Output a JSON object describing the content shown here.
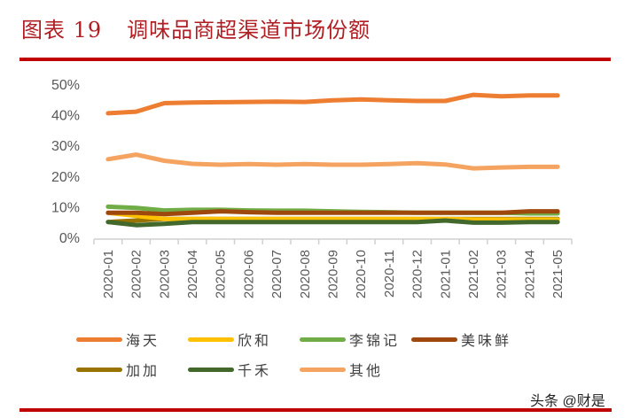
{
  "header": {
    "figure_number": "图表 19",
    "title": "调味品商超渠道市场份额"
  },
  "watermark": "头条 @财是",
  "colors": {
    "haitian": "#ed7d31",
    "xinhe": "#ffc000",
    "likumkee": "#70ad47",
    "meiweixian": "#9e480e",
    "jiajia": "#997300",
    "qianhe": "#43682b",
    "other": "#f4a460",
    "accent_red": "#c00000"
  },
  "legend": [
    {
      "name": "海天",
      "key": "haitian"
    },
    {
      "name": "欣和",
      "key": "xinhe"
    },
    {
      "name": "李锦记",
      "key": "likumkee"
    },
    {
      "name": "美味鲜",
      "key": "meiweixian"
    },
    {
      "name": "加加",
      "key": "jiajia"
    },
    {
      "name": "千禾",
      "key": "qianhe"
    },
    {
      "name": "其他",
      "key": "other"
    }
  ],
  "chart_data": {
    "type": "line",
    "title": "调味品商超渠道市场份额",
    "xlabel": "",
    "ylabel": "",
    "ylim": [
      0,
      50
    ],
    "yticks": [
      "0%",
      "10%",
      "20%",
      "30%",
      "40%",
      "50%"
    ],
    "grid": false,
    "legend_position": "bottom",
    "categories": [
      "2020-01",
      "2020-02",
      "2020-03",
      "2020-04",
      "2020-05",
      "2020-06",
      "2020-07",
      "2020-08",
      "2020-09",
      "2020-10",
      "2020-11",
      "2020-12",
      "2021-01",
      "2021-02",
      "2021-03",
      "2021-04",
      "2021-05"
    ],
    "series": [
      {
        "name": "海天",
        "color": "#ed7d31",
        "values": [
          40.5,
          41.0,
          43.8,
          44.0,
          44.1,
          44.2,
          44.3,
          44.2,
          44.7,
          45.0,
          44.7,
          44.5,
          44.5,
          46.5,
          46.0,
          46.3,
          46.3
        ]
      },
      {
        "name": "欣和",
        "color": "#ffc000",
        "values": [
          8.0,
          7.0,
          6.0,
          6.0,
          6.0,
          6.0,
          6.0,
          6.0,
          6.0,
          6.0,
          6.0,
          6.0,
          6.0,
          5.8,
          5.8,
          5.8,
          5.8
        ]
      },
      {
        "name": "李锦记",
        "color": "#70ad47",
        "values": [
          10.0,
          9.6,
          8.8,
          9.0,
          9.0,
          8.8,
          8.7,
          8.7,
          8.5,
          8.3,
          8.2,
          8.0,
          8.0,
          8.0,
          8.0,
          7.8,
          7.8
        ]
      },
      {
        "name": "美味鲜",
        "color": "#9e480e",
        "values": [
          8.0,
          8.0,
          7.6,
          8.0,
          8.5,
          8.2,
          8.0,
          8.0,
          8.0,
          8.0,
          8.0,
          8.0,
          8.0,
          8.0,
          8.0,
          8.5,
          8.5
        ]
      },
      {
        "name": "加加",
        "color": "#997300",
        "values": [
          5.0,
          5.5,
          6.0,
          6.0,
          6.0,
          6.0,
          6.0,
          6.0,
          6.0,
          6.0,
          6.0,
          6.0,
          6.0,
          6.0,
          6.0,
          6.0,
          6.0
        ]
      },
      {
        "name": "千禾",
        "color": "#43682b",
        "values": [
          5.0,
          4.0,
          4.4,
          5.0,
          5.0,
          5.0,
          5.0,
          5.0,
          5.0,
          5.0,
          5.0,
          5.0,
          5.5,
          4.8,
          4.8,
          5.0,
          5.0
        ]
      },
      {
        "name": "其他",
        "color": "#f4a460",
        "values": [
          25.5,
          27.0,
          25.0,
          24.0,
          23.7,
          23.9,
          23.7,
          23.9,
          23.7,
          23.7,
          23.9,
          24.2,
          23.8,
          22.5,
          22.8,
          23.0,
          23.0
        ]
      }
    ]
  }
}
